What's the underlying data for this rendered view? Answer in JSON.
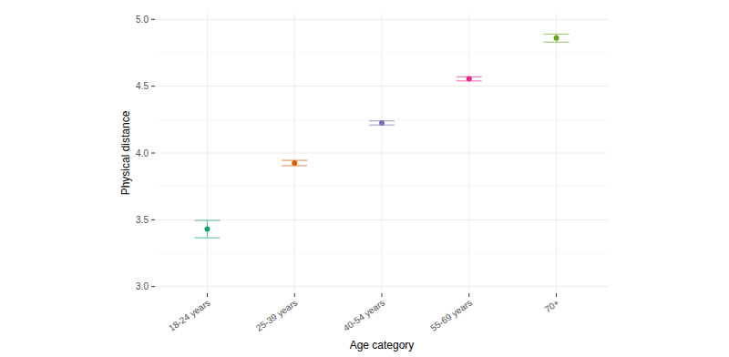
{
  "chart_data": {
    "type": "scatter",
    "x_label": "Age category",
    "y_label": "Physical distance",
    "categories": [
      "18-24 years",
      "25-39 years",
      "40-54 years",
      "55-69 years",
      "70+"
    ],
    "values": [
      3.43,
      3.925,
      4.225,
      4.555,
      4.86
    ],
    "errors": [
      0.065,
      0.02,
      0.015,
      0.015,
      0.03
    ],
    "colors": [
      "#1b9e77",
      "#d95f02",
      "#7570b3",
      "#e7298a",
      "#66a61e"
    ],
    "ylim": [
      2.95,
      5.05
    ],
    "yticks": [
      {
        "value": 3,
        "label": "3.0"
      },
      3.5,
      {
        "value": 4,
        "label": "4.0"
      },
      4.5,
      {
        "value": 5,
        "label": "5.0"
      }
    ],
    "grid": true,
    "marker": "circle"
  }
}
